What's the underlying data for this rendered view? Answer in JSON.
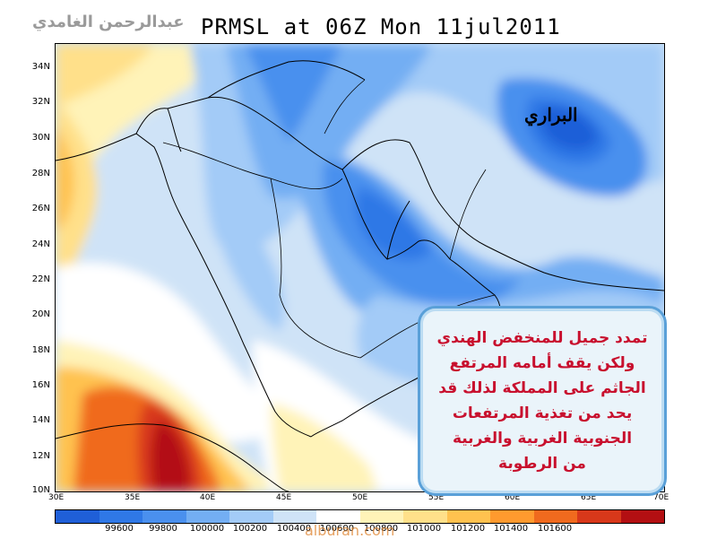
{
  "header": {
    "credit": "عبدالرحمن الغامدي",
    "title": "PRMSL at 06Z Mon 11jul2011"
  },
  "map": {
    "lat_labels": [
      "34N",
      "32N",
      "30N",
      "28N",
      "26N",
      "24N",
      "22N",
      "20N",
      "18N",
      "16N",
      "14N",
      "12N",
      "10N"
    ],
    "lon_labels": [
      "30E",
      "35E",
      "40E",
      "45E",
      "50E",
      "55E",
      "60E",
      "65E",
      "70E"
    ],
    "region_label": "البراري",
    "callout_lines": [
      "تمدد جميل للمنخفض الهندي",
      "ولكن يقف أمامه المرتفع",
      "الجاثم على المملكة لذلك قد",
      "يحد من تغذية المرتفعات",
      "الجنوبية الغربية والغربية",
      "من الرطوبة"
    ]
  },
  "colorbar": {
    "colors": [
      "#1f5fd8",
      "#2f78e6",
      "#4a90ee",
      "#73aef3",
      "#a3cbf7",
      "#cfe3f7",
      "#ffffff",
      "#fff3b8",
      "#ffe08a",
      "#ffc24f",
      "#ff9a2e",
      "#f06a1e",
      "#d8381a",
      "#b30f12"
    ],
    "labels": [
      "99600",
      "99800",
      "100000",
      "100200",
      "100400",
      "100600",
      "100800",
      "101000",
      "101200",
      "101400",
      "101600"
    ]
  },
  "watermark": "alburan.com"
}
